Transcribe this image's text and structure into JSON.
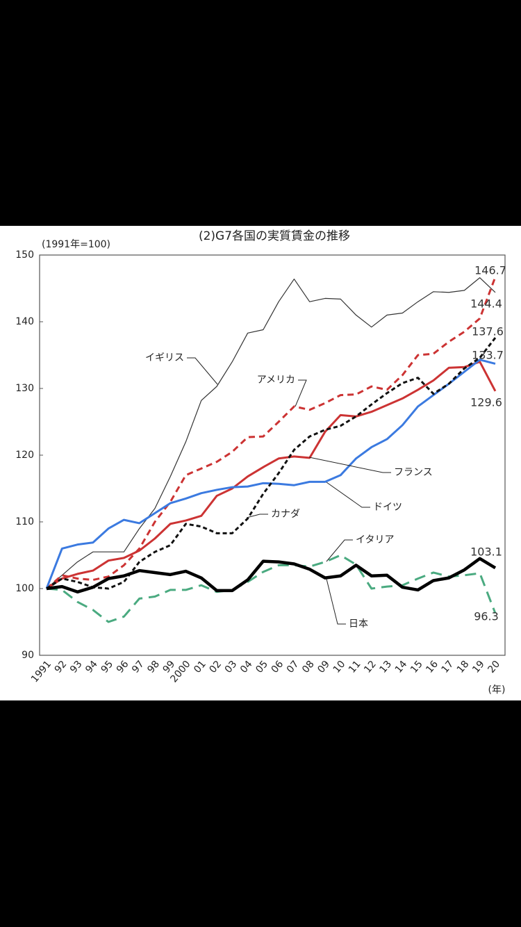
{
  "chart_data": {
    "type": "line",
    "title": "(2)G7各国の実質賃金の推移",
    "subtitle": "(1991年=100)",
    "x_unit": "(年)",
    "categories": [
      "1991",
      "92",
      "93",
      "94",
      "95",
      "96",
      "97",
      "98",
      "99",
      "2000",
      "01",
      "02",
      "03",
      "04",
      "05",
      "06",
      "07",
      "08",
      "09",
      "10",
      "11",
      "12",
      "13",
      "14",
      "15",
      "16",
      "17",
      "18",
      "19",
      "20"
    ],
    "ylim": [
      90,
      150
    ],
    "yticks": [
      90,
      100,
      110,
      120,
      130,
      140,
      150
    ],
    "series": [
      {
        "name": "イギリス",
        "color": "#333333",
        "values": [
          100,
          102,
          104,
          105.5,
          105.5,
          105.5,
          109,
          112,
          116.8,
          122,
          128.2,
          130.3,
          134,
          138.3,
          138.8,
          143,
          146.4,
          143,
          143.5,
          143.4,
          141,
          139.2,
          141,
          141.3,
          143,
          144.5,
          144.4,
          144.7,
          146.6,
          144.4
        ]
      },
      {
        "name": "アメリカ",
        "color": "#cc3333",
        "values": [
          100,
          102,
          101.5,
          101.3,
          101.8,
          103.5,
          106,
          110,
          113,
          117,
          118,
          119,
          120.5,
          122.7,
          122.8,
          125,
          127.3,
          126.8,
          127.8,
          129,
          129.1,
          130.3,
          129.8,
          132,
          135,
          135.2,
          137,
          138.5,
          140.5,
          146.7
        ]
      },
      {
        "name": "フランス",
        "color": "#cc3333",
        "values": [
          100,
          101.5,
          102.2,
          102.7,
          104.2,
          104.6,
          105.7,
          107.5,
          109.7,
          110.2,
          110.9,
          113.9,
          115,
          116.8,
          118.2,
          119.5,
          119.8,
          119.6,
          123.5,
          126,
          125.8,
          126.5,
          127.5,
          128.5,
          129.8,
          131.2,
          133.1,
          133.2,
          134,
          129.6
        ]
      },
      {
        "name": "ドイツ",
        "color": "#3b7ae0",
        "values": [
          100,
          106,
          106.6,
          106.9,
          109,
          110.3,
          109.8,
          111.3,
          112.8,
          113.5,
          114.3,
          114.8,
          115.2,
          115.3,
          115.8,
          115.7,
          115.5,
          116,
          116,
          117,
          119.5,
          121.2,
          122.4,
          124.5,
          127.3,
          129,
          130.7,
          132.5,
          134.3,
          133.7
        ]
      },
      {
        "name": "カナダ",
        "color": "#111111",
        "values": [
          100,
          101.5,
          101,
          100.2,
          100,
          101,
          104,
          105.5,
          106.5,
          109.7,
          109.3,
          108.3,
          108.3,
          110.5,
          114.2,
          117.3,
          120.8,
          122.8,
          123.8,
          124.4,
          125.8,
          127.6,
          129.3,
          130.8,
          131.6,
          129.2,
          130.7,
          133,
          134.6,
          137.6
        ]
      },
      {
        "name": "イタリア",
        "color": "#4aaa80",
        "values": [
          100,
          99.8,
          98,
          96.8,
          95,
          95.8,
          98.5,
          98.8,
          99.8,
          99.8,
          100.5,
          99.5,
          99.8,
          101,
          102.5,
          103.5,
          103.5,
          103.3,
          104,
          105,
          103.6,
          100,
          100.3,
          100.5,
          101.5,
          102.4,
          101.8,
          102,
          102.3,
          96.3
        ]
      },
      {
        "name": "日本",
        "color": "#000000",
        "values": [
          100,
          100.3,
          99.5,
          100.2,
          101.5,
          101.9,
          102.7,
          102.4,
          102.1,
          102.6,
          101.6,
          99.7,
          99.7,
          101.3,
          104.1,
          104,
          103.7,
          102.9,
          101.6,
          101.9,
          103.5,
          101.9,
          102,
          100.2,
          99.8,
          101.2,
          101.6,
          102.8,
          104.5,
          103.1
        ]
      }
    ]
  }
}
